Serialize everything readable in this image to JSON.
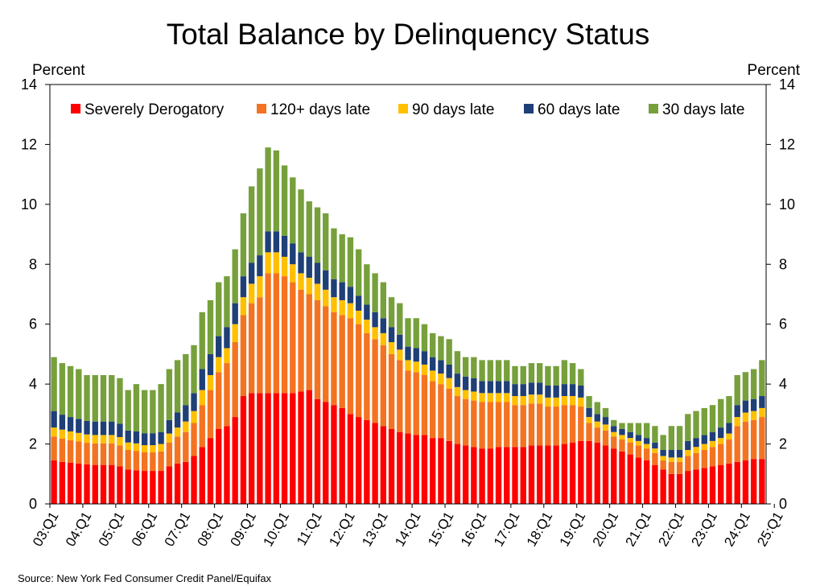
{
  "chart_data": {
    "type": "bar",
    "stacked": true,
    "title": "Total Balance by Delinquency Status",
    "ylabel_left": "Percent",
    "ylabel_right": "Percent",
    "ylim": [
      0,
      14
    ],
    "yticks": [
      "0",
      "2",
      "4",
      "6",
      "8",
      "10",
      "12",
      "14"
    ],
    "legend_position": "top, inside plot",
    "source": "Source: New York Fed Consumer Credit Panel/Equifax",
    "year_labels": [
      "03:Q1",
      "04:Q1",
      "05:Q1",
      "06:Q1",
      "07:Q1",
      "08:Q1",
      "09:Q1",
      "10:Q1",
      "11:Q1",
      "12:Q1",
      "13:Q1",
      "14:Q1",
      "15:Q1",
      "16:Q1",
      "17:Q1",
      "18:Q1",
      "19:Q1",
      "20:Q1",
      "21:Q1",
      "22:Q1",
      "23:Q1",
      "24:Q1",
      "25:Q1"
    ],
    "totals": [
      4.9,
      4.7,
      4.6,
      4.5,
      4.3,
      4.3,
      4.3,
      4.3,
      4.2,
      3.8,
      4.0,
      3.8,
      3.8,
      4.0,
      4.5,
      4.8,
      5.0,
      5.3,
      6.4,
      6.8,
      7.4,
      7.6,
      8.5,
      9.7,
      10.6,
      11.2,
      11.9,
      11.8,
      11.3,
      10.9,
      10.5,
      10.1,
      9.9,
      9.7,
      9.2,
      9.0,
      8.9,
      8.5,
      8.0,
      7.7,
      7.4,
      6.9,
      6.7,
      6.2,
      6.2,
      6.0,
      5.7,
      5.6,
      5.5,
      5.1,
      4.9,
      4.9,
      4.8,
      4.8,
      4.8,
      4.8,
      4.6,
      4.6,
      4.7,
      4.7,
      4.6,
      4.6,
      4.8,
      4.7,
      4.5,
      3.6,
      3.4,
      3.2,
      2.8,
      2.7,
      2.7,
      2.7,
      2.7,
      2.6,
      2.3,
      2.6,
      2.6,
      3.0,
      3.1,
      3.2,
      3.3,
      3.5,
      3.6,
      4.3,
      4.4,
      4.5,
      4.8
    ],
    "series": [
      {
        "name": "Severely Derogatory",
        "color": "#ff0000",
        "values": [
          1.45,
          1.4,
          1.37,
          1.35,
          1.32,
          1.3,
          1.3,
          1.3,
          1.25,
          1.15,
          1.12,
          1.1,
          1.1,
          1.1,
          1.25,
          1.35,
          1.4,
          1.6,
          1.9,
          2.2,
          2.5,
          2.6,
          2.9,
          3.6,
          3.7,
          3.7,
          3.7,
          3.7,
          3.7,
          3.7,
          3.75,
          3.8,
          3.5,
          3.4,
          3.3,
          3.2,
          3.0,
          2.9,
          2.8,
          2.7,
          2.6,
          2.5,
          2.4,
          2.35,
          2.3,
          2.3,
          2.2,
          2.2,
          2.1,
          2.0,
          1.95,
          1.9,
          1.85,
          1.85,
          1.9,
          1.9,
          1.9,
          1.9,
          1.95,
          1.95,
          1.95,
          1.95,
          2.0,
          2.05,
          2.1,
          2.1,
          2.05,
          1.95,
          1.85,
          1.75,
          1.65,
          1.55,
          1.45,
          1.3,
          1.15,
          1.0,
          1.0,
          1.1,
          1.15,
          1.2,
          1.25,
          1.3,
          1.35,
          1.4,
          1.45,
          1.5,
          1.5
        ]
      },
      {
        "name": "120+ days late",
        "color": "#f47321",
        "values": [
          0.8,
          0.78,
          0.76,
          0.74,
          0.72,
          0.72,
          0.72,
          0.72,
          0.7,
          0.65,
          0.65,
          0.62,
          0.62,
          0.65,
          0.8,
          0.9,
          1.0,
          1.1,
          1.4,
          1.6,
          1.9,
          2.1,
          2.5,
          2.7,
          3.0,
          3.2,
          4.0,
          4.0,
          3.9,
          3.7,
          3.4,
          3.2,
          3.3,
          3.2,
          3.1,
          3.1,
          3.2,
          3.1,
          2.9,
          2.8,
          2.7,
          2.5,
          2.4,
          2.1,
          2.1,
          2.0,
          1.9,
          1.8,
          1.75,
          1.6,
          1.55,
          1.55,
          1.55,
          1.55,
          1.5,
          1.5,
          1.4,
          1.4,
          1.4,
          1.4,
          1.3,
          1.3,
          1.3,
          1.25,
          1.15,
          0.6,
          0.5,
          0.5,
          0.4,
          0.4,
          0.4,
          0.4,
          0.4,
          0.4,
          0.3,
          0.4,
          0.4,
          0.5,
          0.55,
          0.6,
          0.65,
          0.7,
          0.8,
          1.2,
          1.3,
          1.3,
          1.4
        ]
      },
      {
        "name": "90 days late",
        "color": "#ffc000",
        "values": [
          0.3,
          0.3,
          0.29,
          0.28,
          0.28,
          0.28,
          0.28,
          0.28,
          0.28,
          0.25,
          0.25,
          0.24,
          0.24,
          0.25,
          0.3,
          0.3,
          0.35,
          0.4,
          0.5,
          0.5,
          0.5,
          0.5,
          0.6,
          0.6,
          0.65,
          0.7,
          0.7,
          0.7,
          0.65,
          0.6,
          0.55,
          0.55,
          0.55,
          0.55,
          0.5,
          0.5,
          0.5,
          0.45,
          0.45,
          0.4,
          0.4,
          0.4,
          0.35,
          0.35,
          0.35,
          0.35,
          0.35,
          0.35,
          0.35,
          0.3,
          0.3,
          0.3,
          0.3,
          0.3,
          0.3,
          0.3,
          0.3,
          0.3,
          0.3,
          0.3,
          0.3,
          0.3,
          0.3,
          0.3,
          0.3,
          0.2,
          0.2,
          0.2,
          0.15,
          0.15,
          0.15,
          0.15,
          0.15,
          0.15,
          0.15,
          0.15,
          0.15,
          0.2,
          0.2,
          0.2,
          0.2,
          0.2,
          0.2,
          0.3,
          0.3,
          0.3,
          0.3
        ]
      },
      {
        "name": "60 days late",
        "color": "#1f3f77",
        "values": [
          0.55,
          0.5,
          0.48,
          0.47,
          0.45,
          0.45,
          0.45,
          0.45,
          0.45,
          0.4,
          0.4,
          0.4,
          0.4,
          0.4,
          0.45,
          0.5,
          0.55,
          0.6,
          0.7,
          0.7,
          0.7,
          0.7,
          0.7,
          0.7,
          0.7,
          0.7,
          0.7,
          0.7,
          0.7,
          0.7,
          0.7,
          0.7,
          0.7,
          0.65,
          0.6,
          0.6,
          0.55,
          0.5,
          0.5,
          0.5,
          0.5,
          0.5,
          0.5,
          0.45,
          0.45,
          0.45,
          0.45,
          0.45,
          0.45,
          0.45,
          0.45,
          0.45,
          0.4,
          0.4,
          0.4,
          0.4,
          0.4,
          0.4,
          0.4,
          0.4,
          0.4,
          0.4,
          0.4,
          0.4,
          0.4,
          0.3,
          0.25,
          0.25,
          0.2,
          0.2,
          0.2,
          0.2,
          0.2,
          0.2,
          0.2,
          0.25,
          0.25,
          0.3,
          0.3,
          0.3,
          0.3,
          0.35,
          0.35,
          0.4,
          0.4,
          0.4,
          0.4
        ]
      },
      {
        "name": "30 days late",
        "color": "#77a03c",
        "values": [
          1.8,
          1.72,
          1.7,
          1.66,
          1.53,
          1.55,
          1.55,
          1.55,
          1.52,
          1.35,
          1.58,
          1.44,
          1.44,
          1.6,
          1.7,
          1.75,
          1.7,
          1.6,
          1.9,
          1.8,
          1.8,
          1.7,
          1.8,
          2.1,
          2.55,
          2.9,
          2.8,
          2.7,
          2.35,
          2.2,
          2.1,
          1.85,
          1.85,
          1.9,
          1.7,
          1.6,
          1.65,
          1.55,
          1.35,
          1.3,
          1.2,
          1.0,
          1.05,
          0.95,
          1.0,
          0.9,
          0.8,
          0.8,
          0.85,
          0.75,
          0.65,
          0.7,
          0.7,
          0.7,
          0.7,
          0.7,
          0.6,
          0.6,
          0.65,
          0.65,
          0.65,
          0.65,
          0.8,
          0.7,
          0.55,
          0.4,
          0.4,
          0.3,
          0.2,
          0.2,
          0.3,
          0.4,
          0.5,
          0.55,
          0.5,
          0.8,
          0.8,
          0.9,
          0.9,
          0.9,
          0.9,
          0.95,
          0.9,
          1.0,
          0.95,
          1.0,
          1.2
        ]
      }
    ]
  }
}
